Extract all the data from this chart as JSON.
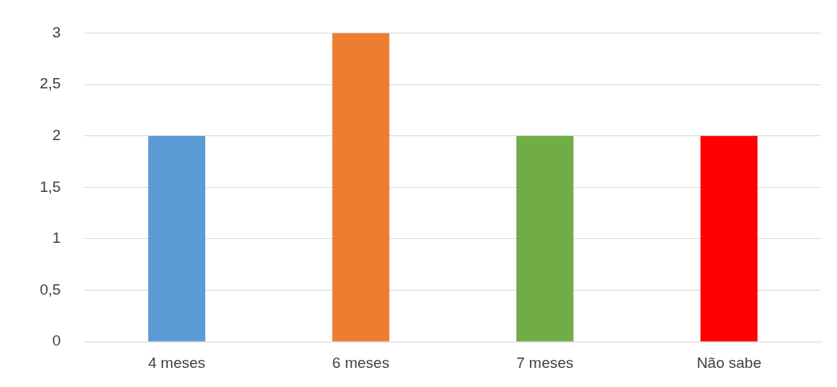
{
  "chart_data": {
    "type": "bar",
    "categories": [
      "4 meses",
      "6 meses",
      "7 meses",
      "Não sabe"
    ],
    "values": [
      2,
      3,
      2,
      2
    ],
    "colors": [
      "#5b9bd5",
      "#ed7d31",
      "#70ad47",
      "#ff0000"
    ],
    "ylim": [
      0,
      3
    ],
    "yticks": [
      0,
      {
        "value": 0.5,
        "label": "0,5"
      },
      1,
      {
        "value": 1.5,
        "label": "1,5"
      },
      2,
      {
        "value": 2.5,
        "label": "2,5"
      },
      3
    ],
    "grid": "y",
    "legend": false
  }
}
